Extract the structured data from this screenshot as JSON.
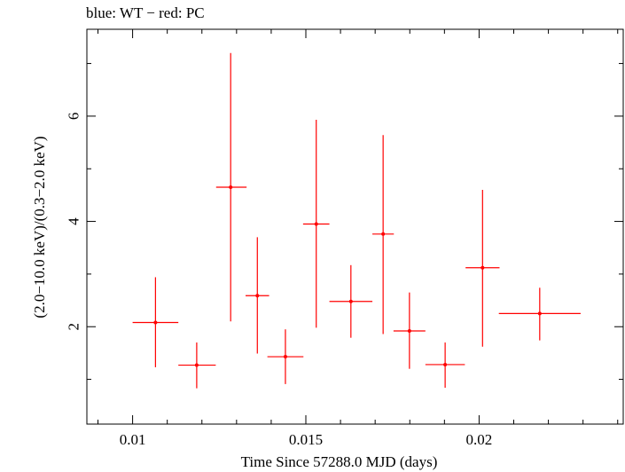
{
  "chart_data": {
    "type": "scatter",
    "title": "blue: WT − red: PC",
    "xlabel": "Time Since 57288.0 MJD (days)",
    "ylabel": "(2.0−10.0 keV)/(0.3−2.0 keV)",
    "xlim": [
      0.00868,
      0.02416
    ],
    "ylim": [
      0.15,
      7.65
    ],
    "x_ticks": [
      0.01,
      0.015,
      0.02
    ],
    "x_tick_labels": [
      "0.01",
      "0.015",
      "0.02"
    ],
    "y_ticks": [
      2,
      4,
      6
    ],
    "y_tick_labels": [
      "2",
      "4",
      "6"
    ],
    "grid": false,
    "series": [
      {
        "color": "#ff0000",
        "points": [
          {
            "x": 0.01066,
            "xerr": [
              0.00066,
              0.00066
            ],
            "y": 2.08,
            "yerr": [
              0.85,
              0.86
            ]
          },
          {
            "x": 0.01185,
            "xerr": [
              0.00053,
              0.00055
            ],
            "y": 1.27,
            "yerr": [
              0.44,
              0.43
            ]
          },
          {
            "x": 0.01283,
            "xerr": [
              0.00042,
              0.00046
            ],
            "y": 4.65,
            "yerr": [
              2.55,
              2.55
            ]
          },
          {
            "x": 0.0136,
            "xerr": [
              0.00034,
              0.00034
            ],
            "y": 2.59,
            "yerr": [
              1.1,
              1.11
            ]
          },
          {
            "x": 0.01441,
            "xerr": [
              0.00052,
              0.00052
            ],
            "y": 1.43,
            "yerr": [
              0.52,
              0.52
            ]
          },
          {
            "x": 0.0153,
            "xerr": [
              0.00038,
              0.00038
            ],
            "y": 3.95,
            "yerr": [
              1.97,
              1.98
            ]
          },
          {
            "x": 0.0163,
            "xerr": [
              0.00062,
              0.00062
            ],
            "y": 2.48,
            "yerr": [
              0.69,
              0.69
            ]
          },
          {
            "x": 0.01723,
            "xerr": [
              0.00031,
              0.00031
            ],
            "y": 3.76,
            "yerr": [
              1.9,
              1.88
            ]
          },
          {
            "x": 0.01799,
            "xerr": [
              0.00046,
              0.00046
            ],
            "y": 1.92,
            "yerr": [
              0.72,
              0.73
            ]
          },
          {
            "x": 0.01902,
            "xerr": [
              0.00057,
              0.00057
            ],
            "y": 1.28,
            "yerr": [
              0.44,
              0.42
            ]
          },
          {
            "x": 0.0201,
            "xerr": [
              0.00049,
              0.00049
            ],
            "y": 3.12,
            "yerr": [
              1.5,
              1.48
            ]
          },
          {
            "x": 0.02175,
            "xerr": [
              0.00118,
              0.00118
            ],
            "y": 2.25,
            "yerr": [
              0.51,
              0.49
            ]
          }
        ]
      }
    ]
  }
}
